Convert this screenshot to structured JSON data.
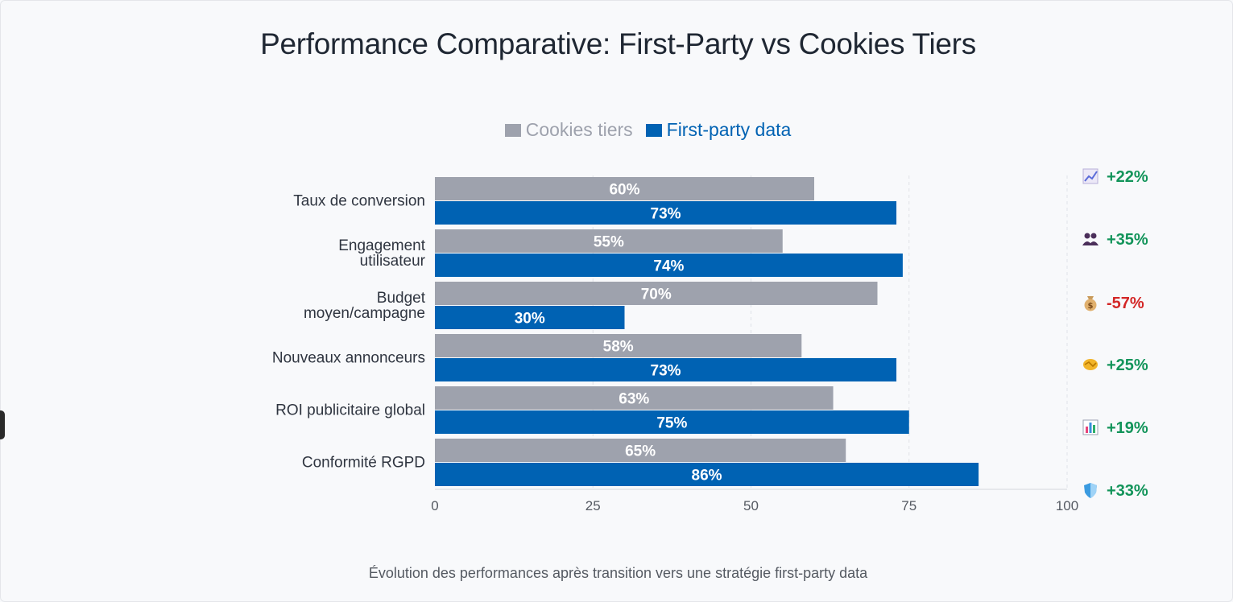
{
  "chart_data": {
    "type": "bar",
    "orientation": "horizontal",
    "title": "Performance Comparative: First-Party vs Cookies Tiers",
    "subtitle": "Évolution des performances après transition vers une stratégie first-party data",
    "categories": [
      "Taux de conversion",
      "Engagement utilisateur",
      "Budget moyen/campagne",
      "Nouveaux annonceurs",
      "ROI publicitaire global",
      "Conformité RGPD"
    ],
    "category_lines": [
      [
        "Taux de conversion"
      ],
      [
        "Engagement",
        "utilisateur"
      ],
      [
        "Budget",
        "moyen/campagne"
      ],
      [
        "Nouveaux annonceurs"
      ],
      [
        "ROI publicitaire global"
      ],
      [
        "Conformité RGPD"
      ]
    ],
    "series": [
      {
        "name": "Cookies tiers",
        "values": [
          60,
          55,
          70,
          58,
          63,
          65
        ],
        "color": "#9ea2ad"
      },
      {
        "name": "First-party data",
        "values": [
          73,
          74,
          30,
          73,
          75,
          86
        ],
        "color": "#0062b3"
      }
    ],
    "data_label_suffix": "%",
    "xlim": [
      0,
      100
    ],
    "xticks": [
      0,
      25,
      50,
      75,
      100
    ],
    "grid": true,
    "legend_position": "top",
    "annotations": [
      {
        "icon": "chart-increasing-icon",
        "text": "+22%",
        "color": "#12945a"
      },
      {
        "icon": "people-icon",
        "text": "+35%",
        "color": "#12945a"
      },
      {
        "icon": "money-bag-icon",
        "text": "-57%",
        "color": "#d32626"
      },
      {
        "icon": "handshake-icon",
        "text": "+25%",
        "color": "#12945a"
      },
      {
        "icon": "bar-chart-icon",
        "text": "+19%",
        "color": "#12945a"
      },
      {
        "icon": "shield-icon",
        "text": "+33%",
        "color": "#12945a"
      }
    ]
  }
}
